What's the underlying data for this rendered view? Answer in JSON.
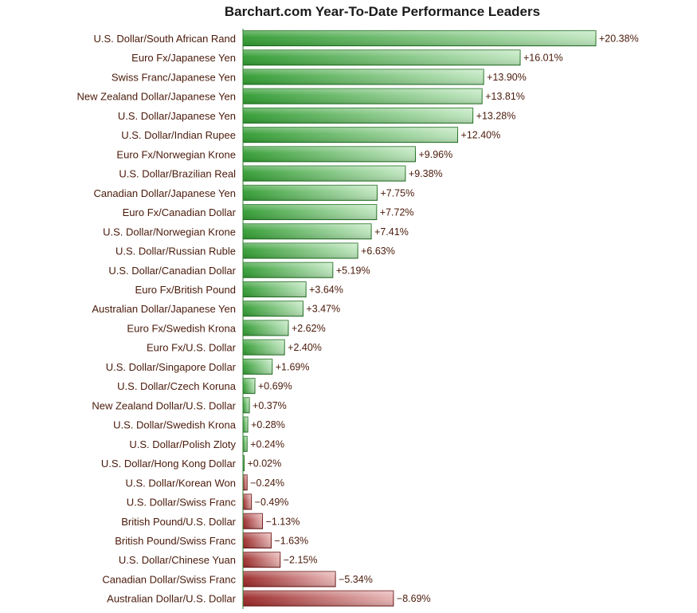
{
  "colors": {
    "positive_light": "#bfe6bf",
    "positive_dark": "#2f9a2f",
    "positive_stroke": "#1f6f1f",
    "negative_light": "#e7b4b4",
    "negative_dark": "#9a2626",
    "negative_stroke": "#6a1212",
    "label_text": "#4a1a0a",
    "axis_line": "#2e7d2e"
  },
  "chart_data": {
    "type": "bar",
    "orientation": "horizontal",
    "title": "Barchart.com Year-To-Date Performance Leaders",
    "xlabel": "",
    "ylabel": "",
    "grid": false,
    "xlim": [
      -9,
      21
    ],
    "categories": [
      "U.S. Dollar/South African Rand",
      "Euro Fx/Japanese Yen",
      "Swiss Franc/Japanese Yen",
      "New Zealand Dollar/Japanese Yen",
      "U.S. Dollar/Japanese Yen",
      "U.S. Dollar/Indian Rupee",
      "Euro Fx/Norwegian Krone",
      "U.S. Dollar/Brazilian Real",
      "Canadian Dollar/Japanese Yen",
      "Euro Fx/Canadian Dollar",
      "U.S. Dollar/Norwegian Krone",
      "U.S. Dollar/Russian Ruble",
      "U.S. Dollar/Canadian Dollar",
      "Euro Fx/British Pound",
      "Australian Dollar/Japanese Yen",
      "Euro Fx/Swedish Krona",
      "Euro Fx/U.S. Dollar",
      "U.S. Dollar/Singapore Dollar",
      "U.S. Dollar/Czech Koruna",
      "New Zealand Dollar/U.S. Dollar",
      "U.S. Dollar/Swedish Krona",
      "U.S. Dollar/Polish Zloty",
      "U.S. Dollar/Hong Kong Dollar",
      "U.S. Dollar/Korean Won",
      "U.S. Dollar/Swiss Franc",
      "British Pound/U.S. Dollar",
      "British Pound/Swiss Franc",
      "U.S. Dollar/Chinese Yuan",
      "Canadian Dollar/Swiss Franc",
      "Australian Dollar/U.S. Dollar"
    ],
    "values": [
      20.38,
      16.01,
      13.9,
      13.81,
      13.28,
      12.4,
      9.96,
      9.38,
      7.75,
      7.72,
      7.41,
      6.63,
      5.19,
      3.64,
      3.47,
      2.62,
      2.4,
      1.69,
      0.69,
      0.37,
      0.28,
      0.24,
      0.02,
      -0.24,
      -0.49,
      -1.13,
      -1.63,
      -2.15,
      -5.34,
      -8.69
    ],
    "value_labels": [
      "+20.38%",
      "+16.01%",
      "+13.90%",
      "+13.81%",
      "+13.28%",
      "+12.40%",
      "+9.96%",
      "+9.38%",
      "+7.75%",
      "+7.72%",
      "+7.41%",
      "+6.63%",
      "+5.19%",
      "+3.64%",
      "+3.47%",
      "+2.62%",
      "+2.40%",
      "+1.69%",
      "+0.69%",
      "+0.37%",
      "+0.28%",
      "+0.24%",
      "+0.02%",
      "−0.24%",
      "−0.49%",
      "−1.13%",
      "−1.63%",
      "−2.15%",
      "−5.34%",
      "−8.69%"
    ]
  }
}
